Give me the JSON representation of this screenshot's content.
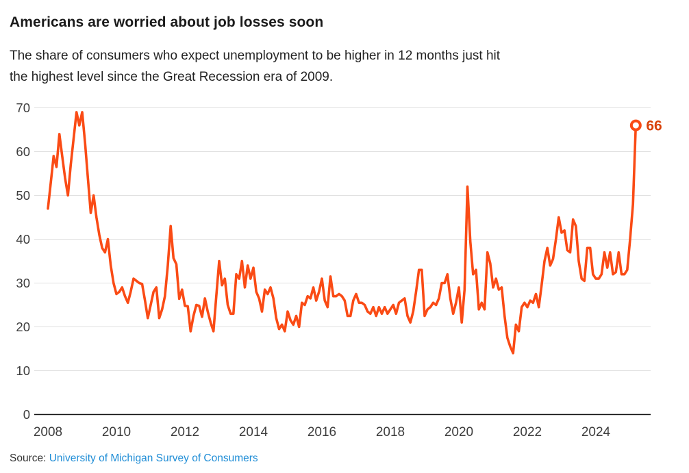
{
  "header": {
    "title": "Americans are worried about job losses soon",
    "subtitle_lines": [
      "The share of consumers who expect unemployment to be higher in 12 months just hit",
      "the highest level since the Great Recession era of 2009."
    ]
  },
  "footer": {
    "source_prefix": "Source:",
    "source_link": "University of Michigan Survey of Consumers"
  },
  "colors": {
    "line": "#fa4b15",
    "end_marker_fill": "#ffffff",
    "end_label": "#d9420a",
    "grid": "#e0e0e0",
    "baseline": "#161616",
    "axis_text": "#3d3d3d",
    "title_text": "#1a1a1a",
    "subtitle_text": "#222222",
    "source_link": "#1f8dd6"
  },
  "end_point": {
    "label": "66",
    "value": 66
  },
  "chart_data": {
    "type": "line",
    "title": "Americans are worried about job losses soon",
    "subtitle": "The share of consumers who expect unemployment to be higher in 12 months just hit the highest level since the Great Recession era of 2009.",
    "x_unit": "month",
    "x_range": [
      "2008-01",
      "2025-03"
    ],
    "x_tick_labels": [
      "2008",
      "2010",
      "2012",
      "2014",
      "2016",
      "2018",
      "2020",
      "2022",
      "2024"
    ],
    "y_tick_labels": [
      "0",
      "10",
      "20",
      "30",
      "40",
      "50",
      "60",
      "70"
    ],
    "ylim": [
      0,
      71
    ],
    "grid": "horizontal",
    "legend": "none",
    "annotation_last_value": 66,
    "series": [
      {
        "name": "Share of consumers expecting higher unemployment in 12 months (%)",
        "start": "2008-01",
        "values": [
          47,
          53,
          59,
          56.5,
          64,
          59,
          54,
          50,
          57,
          63,
          69,
          66,
          69,
          62,
          54,
          46,
          50,
          45,
          41,
          38,
          37,
          40,
          34,
          30,
          27.5,
          28,
          29,
          27,
          25.5,
          28,
          31,
          30.5,
          30,
          29.8,
          26,
          22,
          25,
          28,
          29,
          22,
          24,
          27,
          34,
          43,
          35.7,
          34.3,
          26.4,
          28.5,
          24.8,
          24.7,
          19,
          22.5,
          25,
          24.8,
          22.3,
          26.5,
          23.5,
          21,
          19,
          27,
          35,
          29.5,
          31,
          25,
          23,
          23,
          32,
          31,
          35,
          29,
          34,
          31,
          33.5,
          28,
          26.5,
          23.5,
          28.5,
          27.5,
          29,
          26.5,
          22,
          19.5,
          20.5,
          19,
          23.5,
          21.5,
          20.5,
          22.5,
          20,
          25.5,
          25,
          27,
          26.5,
          29,
          26,
          28,
          31,
          26,
          24.5,
          31.5,
          27,
          27,
          27.5,
          27,
          26,
          22.5,
          22.5,
          26,
          27.5,
          25.5,
          25.5,
          25,
          23.5,
          23,
          24.5,
          22.5,
          24.5,
          23,
          24.5,
          23,
          24,
          25,
          23,
          25.5,
          26,
          26.5,
          22.5,
          21,
          23.5,
          28,
          33,
          33,
          22.5,
          24,
          24.5,
          25.5,
          25,
          26.5,
          30,
          30,
          32,
          26.5,
          23,
          25.5,
          29,
          21,
          28.5,
          52,
          39.5,
          32,
          33,
          24,
          25.5,
          24,
          37,
          34.5,
          29,
          31,
          28.5,
          29,
          22.5,
          17.5,
          15.5,
          14,
          20.5,
          19,
          24.5,
          25.5,
          24.5,
          26,
          25.5,
          27.5,
          24.5,
          29.5,
          35,
          38,
          34,
          35.5,
          40,
          45,
          41.5,
          42,
          37.5,
          37,
          44.5,
          43,
          35,
          31,
          30.5,
          38,
          38,
          32,
          31,
          31,
          32,
          37,
          33.5,
          37,
          32,
          32.5,
          37,
          32,
          32,
          33,
          40,
          48,
          66
        ]
      }
    ]
  }
}
